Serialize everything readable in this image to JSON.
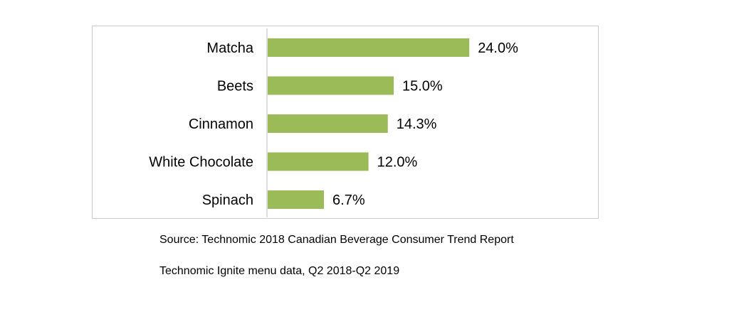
{
  "chart_data": {
    "type": "bar",
    "orientation": "horizontal",
    "categories": [
      "Matcha",
      "Beets",
      "Cinnamon",
      "White Chocolate",
      "Spinach"
    ],
    "values": [
      24.0,
      15.0,
      14.3,
      12.0,
      6.7
    ],
    "value_labels": [
      "24.0%",
      "15.0%",
      "14.3%",
      "12.0%",
      "6.7%"
    ],
    "unit": "%",
    "bar_color": "#9bbb59",
    "xlim": [
      0,
      30
    ],
    "grid": false,
    "legend": "none"
  },
  "notes": {
    "source": "Source: Technomic 2018 Canadian Beverage Consumer Trend Report",
    "data": "Technomic Ignite menu data, Q2 2018-Q2 2019"
  }
}
